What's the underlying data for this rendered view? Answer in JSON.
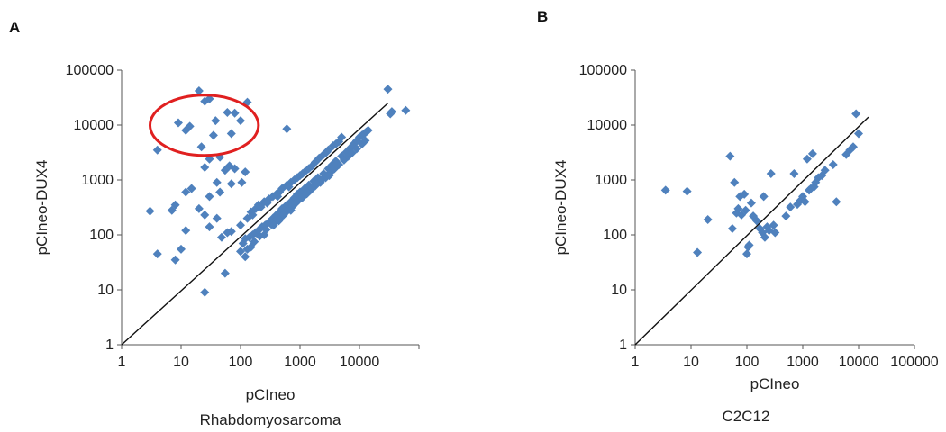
{
  "chart_data": [
    {
      "type": "scatter",
      "panel_letter": "A",
      "xlabel": "pCIneo",
      "ylabel": "pCIneo-DUX4",
      "caption": "Rhabdomyosarcoma",
      "x_scale": "log",
      "y_scale": "log",
      "xlim": [
        1,
        100000
      ],
      "ylim": [
        1,
        100000
      ],
      "x_ticks": [
        "1",
        "10",
        "100",
        "1000",
        "10000"
      ],
      "y_ticks": [
        "1",
        "10",
        "100",
        "1000",
        "10000",
        "100000"
      ],
      "marker": "diamond",
      "marker_color": "#4f81bd",
      "reference_line": {
        "from": [
          1,
          1
        ],
        "to": [
          30000,
          25000
        ]
      },
      "highlight": {
        "shape": "ellipse",
        "color": "#e02020",
        "x_range": [
          3,
          200
        ],
        "y_range": [
          2800,
          35000
        ]
      },
      "points": [
        [
          20,
          42000
        ],
        [
          30,
          30000
        ],
        [
          25,
          27000
        ],
        [
          130,
          26000
        ],
        [
          60,
          17000
        ],
        [
          80,
          16500
        ],
        [
          38,
          12000
        ],
        [
          100,
          12000
        ],
        [
          9,
          11000
        ],
        [
          14,
          9500
        ],
        [
          12,
          8000
        ],
        [
          70,
          7000
        ],
        [
          35,
          6500
        ],
        [
          4,
          3500
        ],
        [
          22,
          4000
        ],
        [
          45,
          2600
        ],
        [
          30,
          2400
        ],
        [
          65,
          1800
        ],
        [
          80,
          1600
        ],
        [
          55,
          1500
        ],
        [
          25,
          1700
        ],
        [
          120,
          1400
        ],
        [
          105,
          900
        ],
        [
          40,
          900
        ],
        [
          70,
          850
        ],
        [
          15,
          700
        ],
        [
          12,
          600
        ],
        [
          45,
          600
        ],
        [
          30,
          500
        ],
        [
          8,
          350
        ],
        [
          3,
          270
        ],
        [
          7,
          280
        ],
        [
          20,
          300
        ],
        [
          25,
          230
        ],
        [
          40,
          200
        ],
        [
          30,
          140
        ],
        [
          12,
          120
        ],
        [
          4,
          45
        ],
        [
          8,
          35
        ],
        [
          10,
          55
        ],
        [
          25,
          9
        ],
        [
          55,
          20
        ],
        [
          48,
          90
        ],
        [
          60,
          110
        ],
        [
          70,
          115
        ],
        [
          600,
          8500
        ],
        [
          30000,
          45000
        ],
        [
          35000,
          17500
        ],
        [
          33000,
          16000
        ],
        [
          60000,
          18500
        ],
        [
          100,
          150
        ],
        [
          130,
          200
        ],
        [
          150,
          260
        ],
        [
          180,
          300
        ],
        [
          200,
          350
        ],
        [
          250,
          400
        ],
        [
          300,
          450
        ],
        [
          350,
          500
        ],
        [
          400,
          550
        ],
        [
          450,
          600
        ],
        [
          500,
          700
        ],
        [
          600,
          800
        ],
        [
          700,
          900
        ],
        [
          800,
          1000
        ],
        [
          900,
          1100
        ],
        [
          1000,
          1200
        ],
        [
          1200,
          1400
        ],
        [
          1400,
          1600
        ],
        [
          1600,
          1800
        ],
        [
          1800,
          2100
        ],
        [
          2100,
          2500
        ],
        [
          2500,
          2900
        ],
        [
          3000,
          3500
        ],
        [
          3600,
          4200
        ],
        [
          4500,
          5000
        ],
        [
          5000,
          6000
        ],
        [
          160,
          230
        ],
        [
          220,
          320
        ],
        [
          280,
          380
        ],
        [
          420,
          500
        ],
        [
          650,
          750
        ],
        [
          1100,
          1300
        ],
        [
          2800,
          3200
        ],
        [
          4000,
          4500
        ],
        [
          110,
          70
        ],
        [
          120,
          85
        ],
        [
          140,
          90
        ],
        [
          160,
          100
        ],
        [
          180,
          110
        ],
        [
          200,
          120
        ],
        [
          230,
          140
        ],
        [
          260,
          150
        ],
        [
          300,
          170
        ],
        [
          350,
          200
        ],
        [
          400,
          230
        ],
        [
          450,
          260
        ],
        [
          500,
          300
        ],
        [
          600,
          350
        ],
        [
          700,
          400
        ],
        [
          800,
          470
        ],
        [
          900,
          550
        ],
        [
          1000,
          600
        ],
        [
          1200,
          700
        ],
        [
          1400,
          800
        ],
        [
          1700,
          950
        ],
        [
          2000,
          1100
        ],
        [
          2500,
          1300
        ],
        [
          3000,
          1600
        ],
        [
          3500,
          1900
        ],
        [
          4000,
          2200
        ],
        [
          5000,
          2700
        ],
        [
          6000,
          3200
        ],
        [
          7000,
          3800
        ],
        [
          8000,
          4500
        ],
        [
          9000,
          5200
        ],
        [
          10000,
          6000
        ],
        [
          12000,
          7000
        ],
        [
          13000,
          7500
        ],
        [
          11000,
          6500
        ],
        [
          14000,
          8000
        ],
        [
          100,
          50
        ],
        [
          130,
          55
        ],
        [
          150,
          60
        ],
        [
          120,
          40
        ],
        [
          170,
          75
        ],
        [
          210,
          95
        ],
        [
          270,
          125
        ],
        [
          330,
          155
        ],
        [
          380,
          175
        ],
        [
          480,
          210
        ],
        [
          560,
          250
        ],
        [
          650,
          290
        ],
        [
          750,
          330
        ],
        [
          850,
          380
        ],
        [
          950,
          430
        ],
        [
          1100,
          480
        ],
        [
          1300,
          560
        ],
        [
          1500,
          650
        ],
        [
          1800,
          780
        ],
        [
          2200,
          900
        ],
        [
          2700,
          1100
        ],
        [
          3200,
          1350
        ],
        [
          3800,
          1600
        ],
        [
          4500,
          1900
        ],
        [
          5500,
          2300
        ],
        [
          6500,
          2700
        ],
        [
          7500,
          3100
        ],
        [
          9000,
          3700
        ],
        [
          11000,
          4500
        ],
        [
          12500,
          5200
        ],
        [
          4200,
          1900
        ],
        [
          3100,
          1200
        ],
        [
          2300,
          1000
        ],
        [
          1900,
          850
        ],
        [
          1600,
          700
        ],
        [
          700,
          280
        ],
        [
          530,
          230
        ],
        [
          440,
          180
        ],
        [
          360,
          150
        ],
        [
          250,
          100
        ]
      ]
    },
    {
      "type": "scatter",
      "panel_letter": "B",
      "xlabel": "pCIneo",
      "ylabel": "pCIneo-DUX4",
      "caption": "C2C12",
      "x_scale": "log",
      "y_scale": "log",
      "xlim": [
        1,
        100000
      ],
      "ylim": [
        1,
        100000
      ],
      "x_ticks": [
        "1",
        "10",
        "100",
        "1000",
        "10000",
        "100000"
      ],
      "y_ticks": [
        "1",
        "10",
        "100",
        "1000",
        "10000",
        "100000"
      ],
      "marker": "diamond",
      "marker_color": "#4f81bd",
      "reference_line": {
        "from": [
          1,
          1
        ],
        "to": [
          15000,
          14000
        ]
      },
      "points": [
        [
          3.5,
          650
        ],
        [
          8.5,
          620
        ],
        [
          13,
          48
        ],
        [
          20,
          190
        ],
        [
          50,
          2700
        ],
        [
          55,
          130
        ],
        [
          60,
          900
        ],
        [
          65,
          250
        ],
        [
          70,
          300
        ],
        [
          75,
          500
        ],
        [
          80,
          230
        ],
        [
          90,
          550
        ],
        [
          95,
          280
        ],
        [
          100,
          45
        ],
        [
          105,
          60
        ],
        [
          110,
          65
        ],
        [
          120,
          380
        ],
        [
          130,
          220
        ],
        [
          150,
          180
        ],
        [
          170,
          130
        ],
        [
          190,
          110
        ],
        [
          200,
          500
        ],
        [
          210,
          90
        ],
        [
          230,
          140
        ],
        [
          250,
          120
        ],
        [
          270,
          1300
        ],
        [
          300,
          150
        ],
        [
          320,
          110
        ],
        [
          500,
          220
        ],
        [
          600,
          320
        ],
        [
          700,
          1300
        ],
        [
          800,
          360
        ],
        [
          900,
          420
        ],
        [
          1000,
          500
        ],
        [
          1100,
          400
        ],
        [
          1200,
          2400
        ],
        [
          1300,
          650
        ],
        [
          1400,
          700
        ],
        [
          1500,
          3000
        ],
        [
          1600,
          750
        ],
        [
          1700,
          900
        ],
        [
          1900,
          1100
        ],
        [
          2200,
          1200
        ],
        [
          2500,
          1500
        ],
        [
          3500,
          1900
        ],
        [
          4000,
          400
        ],
        [
          6000,
          2900
        ],
        [
          7000,
          3500
        ],
        [
          8000,
          4000
        ],
        [
          9000,
          16000
        ],
        [
          10000,
          7000
        ]
      ]
    }
  ]
}
